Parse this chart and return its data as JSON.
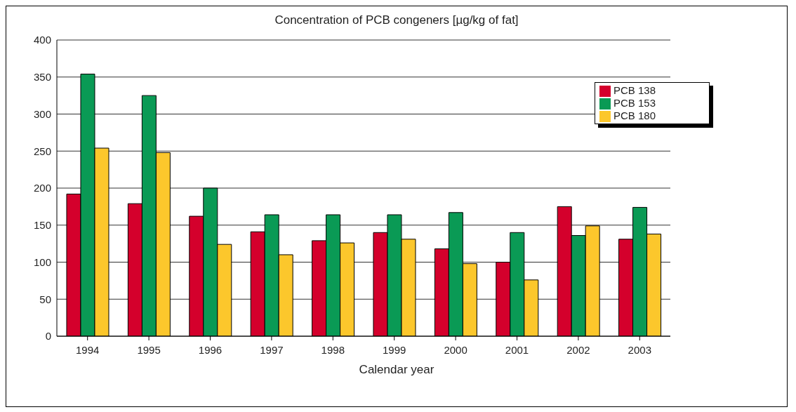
{
  "chart_data": {
    "type": "bar",
    "title": "Concentration of PCB congeners [µg/kg of fat]",
    "xlabel": "Calendar year",
    "categories": [
      "1994",
      "1995",
      "1996",
      "1997",
      "1998",
      "1999",
      "2000",
      "2001",
      "2002",
      "2003"
    ],
    "series": [
      {
        "name": "PCB 138",
        "color": "#d4002c",
        "values": [
          192,
          179,
          162,
          141,
          129,
          140,
          118,
          100,
          175,
          131
        ]
      },
      {
        "name": "PCB 153",
        "color": "#0a9a55",
        "values": [
          354,
          325,
          200,
          164,
          164,
          164,
          167,
          140,
          136,
          174
        ]
      },
      {
        "name": "PCB 180",
        "color": "#fcc72c",
        "values": [
          254,
          248,
          124,
          110,
          126,
          131,
          98,
          76,
          149,
          138
        ]
      }
    ],
    "ylim": [
      0,
      400
    ],
    "yticks": [
      0,
      50,
      100,
      150,
      200,
      250,
      300,
      350,
      400
    ],
    "grid": "y",
    "legend": "top right"
  }
}
